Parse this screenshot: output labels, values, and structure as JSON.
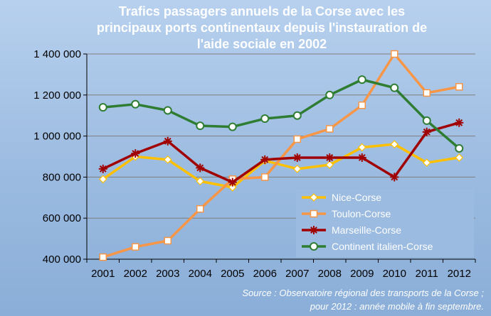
{
  "chart_data": {
    "type": "line",
    "title_lines": [
      "Trafics passagers annuels de la Corse avec les",
      "principaux ports continentaux depuis l'instauration de",
      "l'aide sociale en 2002"
    ],
    "categories": [
      "2001",
      "2002",
      "2003",
      "2004",
      "2005",
      "2006",
      "2007",
      "2008",
      "2009",
      "2010",
      "2011",
      "2012"
    ],
    "ylim": [
      400000,
      1400000
    ],
    "yticks": [
      400000,
      600000,
      800000,
      1000000,
      1200000,
      1400000
    ],
    "ytick_labels": [
      "400 000",
      "600 000",
      "800 000",
      "1 000 000",
      "1 200 000",
      "1 400 000"
    ],
    "grid": true,
    "legend_position": "bottom-right",
    "series": [
      {
        "name": "Nice-Corse",
        "color": "#ffc000",
        "marker": "diamond",
        "values": [
          790000,
          900000,
          885000,
          780000,
          750000,
          880000,
          840000,
          860000,
          945000,
          960000,
          870000,
          895000
        ]
      },
      {
        "name": "Toulon-Corse",
        "color": "#f79646",
        "marker": "square",
        "values": [
          410000,
          460000,
          490000,
          645000,
          790000,
          800000,
          985000,
          1035000,
          1150000,
          1400000,
          1210000,
          1240000
        ]
      },
      {
        "name": "Marseille-Corse",
        "color": "#a00000",
        "marker": "star",
        "values": [
          840000,
          915000,
          975000,
          845000,
          775000,
          885000,
          895000,
          895000,
          895000,
          800000,
          1020000,
          1065000
        ]
      },
      {
        "name": "Continent  italien-Corse",
        "color": "#2e7d32",
        "marker": "circle",
        "values": [
          1140000,
          1155000,
          1125000,
          1050000,
          1045000,
          1085000,
          1100000,
          1200000,
          1275000,
          1235000,
          1075000,
          940000
        ]
      }
    ],
    "source_lines": [
      "Source : Observatoire régional des transports de la Corse ;",
      "pour 2012 : année mobile à fin septembre."
    ]
  }
}
